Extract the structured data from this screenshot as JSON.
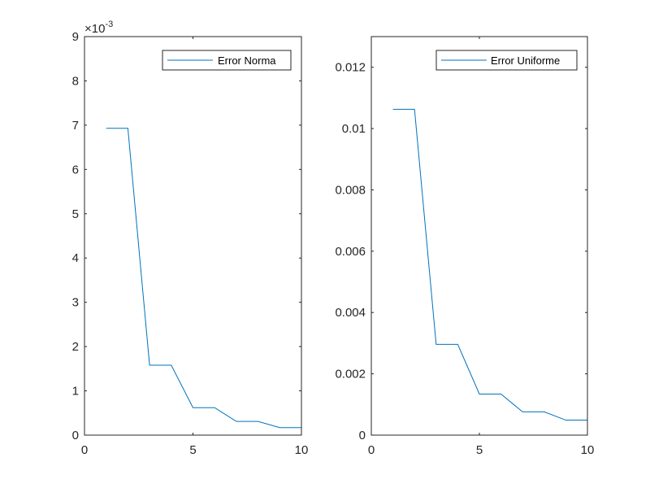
{
  "chart_data": [
    {
      "type": "line",
      "x": [
        1,
        2,
        3,
        4,
        5,
        6,
        7,
        8,
        9,
        10
      ],
      "series": [
        {
          "name": "Error Norma",
          "values": [
            0.00693,
            0.00693,
            0.00158,
            0.00158,
            0.00062,
            0.00062,
            0.00031,
            0.00031,
            0.00017,
            0.00017
          ]
        }
      ],
      "xlim": [
        0,
        10
      ],
      "ylim": [
        0,
        0.009
      ],
      "xticks": [
        0,
        5,
        10
      ],
      "xtick_labels": [
        "0",
        "5",
        "10"
      ],
      "yticks": [
        0,
        0.001,
        0.002,
        0.003,
        0.004,
        0.005,
        0.006,
        0.007,
        0.008,
        0.009
      ],
      "ytick_labels": [
        "0",
        "1",
        "2",
        "3",
        "4",
        "5",
        "6",
        "7",
        "8",
        "9"
      ],
      "y_exponent_base": "×10",
      "y_exponent_power": "-3",
      "legend": "top-right",
      "grid": false,
      "title": "",
      "xlabel": "",
      "ylabel": ""
    },
    {
      "type": "line",
      "x": [
        1,
        2,
        3,
        4,
        5,
        6,
        7,
        8,
        9,
        10
      ],
      "series": [
        {
          "name": "Error Uniforme",
          "values": [
            0.01063,
            0.01063,
            0.00296,
            0.00296,
            0.00134,
            0.00134,
            0.00076,
            0.00076,
            0.00049,
            0.00049
          ]
        }
      ],
      "xlim": [
        0,
        10
      ],
      "ylim": [
        0,
        0.013
      ],
      "xticks": [
        0,
        5,
        10
      ],
      "xtick_labels": [
        "0",
        "5",
        "10"
      ],
      "yticks": [
        0,
        0.002,
        0.004,
        0.006,
        0.008,
        0.01,
        0.012
      ],
      "ytick_labels": [
        "0",
        "0.002",
        "0.004",
        "0.006",
        "0.008",
        "0.01",
        "0.012"
      ],
      "legend": "top-right",
      "grid": false,
      "title": "",
      "xlabel": "",
      "ylabel": ""
    }
  ],
  "colors": {
    "line": "#0072BD",
    "axis": "#262626",
    "background": "#ffffff"
  }
}
